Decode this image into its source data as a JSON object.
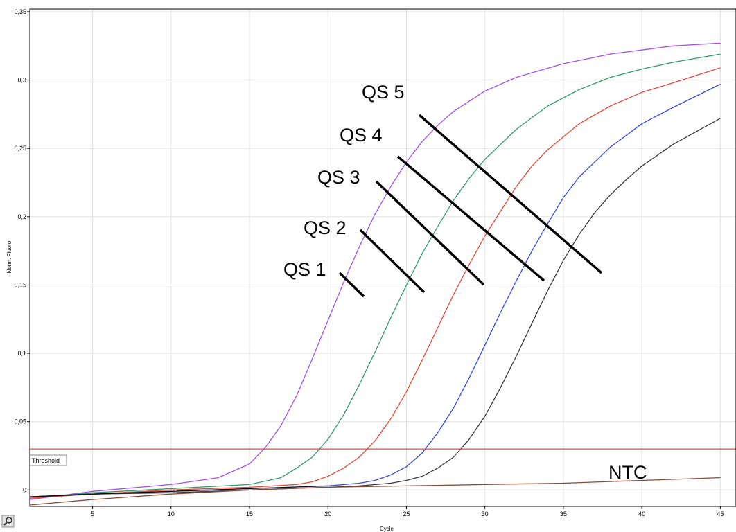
{
  "chart_data": {
    "type": "line",
    "xlabel": "Cycle",
    "ylabel": "Norm. Fluoro.",
    "xlim": [
      1,
      46
    ],
    "ylim": [
      -0.012,
      0.352
    ],
    "xticks": [
      5,
      10,
      15,
      20,
      25,
      30,
      35,
      40,
      45
    ],
    "xtick_labels": [
      "5",
      "10",
      "15",
      "20",
      "25",
      "30",
      "35",
      "40",
      "45"
    ],
    "yticks": [
      0,
      0.05,
      0.1,
      0.15,
      0.2,
      0.25,
      0.3,
      0.35
    ],
    "ytick_labels": [
      "0",
      "0,05",
      "0,1",
      "0,15",
      "0,2",
      "0,25",
      "0,3",
      "0,35"
    ],
    "threshold": {
      "label": "Threshold",
      "value": 0.03,
      "color": "#e04848"
    },
    "series": [
      {
        "label": "QS 5",
        "color": "#a050ee",
        "x": [
          1,
          5,
          10,
          13,
          15,
          16,
          17,
          18,
          19,
          20,
          21,
          22,
          23,
          24,
          25,
          26,
          27,
          28,
          30,
          32,
          35,
          38,
          40,
          42,
          45
        ],
        "y": [
          -0.007,
          -0.001,
          0.004,
          0.009,
          0.019,
          0.031,
          0.047,
          0.069,
          0.096,
          0.124,
          0.152,
          0.178,
          0.202,
          0.222,
          0.24,
          0.255,
          0.267,
          0.277,
          0.292,
          0.302,
          0.312,
          0.319,
          0.322,
          0.325,
          0.327
        ]
      },
      {
        "label": "QS 4",
        "color": "#2e9a66",
        "x": [
          1,
          5,
          10,
          15,
          17,
          18,
          19,
          20,
          21,
          22,
          23,
          24,
          25,
          26,
          27,
          28,
          29,
          30,
          32,
          34,
          36,
          38,
          40,
          42,
          45
        ],
        "y": [
          -0.006,
          -0.002,
          0.001,
          0.004,
          0.009,
          0.016,
          0.024,
          0.037,
          0.055,
          0.077,
          0.101,
          0.126,
          0.15,
          0.173,
          0.193,
          0.212,
          0.228,
          0.242,
          0.264,
          0.281,
          0.293,
          0.302,
          0.308,
          0.313,
          0.319
        ]
      },
      {
        "label": "QS 3",
        "color": "#e2483a",
        "x": [
          1,
          5,
          10,
          15,
          18,
          19,
          20,
          21,
          22,
          23,
          24,
          25,
          26,
          27,
          28,
          29,
          30,
          31,
          32,
          33,
          34,
          36,
          38,
          40,
          42,
          45
        ],
        "y": [
          -0.006,
          -0.003,
          0.0,
          0.002,
          0.004,
          0.006,
          0.01,
          0.016,
          0.024,
          0.036,
          0.052,
          0.072,
          0.095,
          0.119,
          0.143,
          0.165,
          0.186,
          0.204,
          0.222,
          0.237,
          0.249,
          0.268,
          0.281,
          0.291,
          0.298,
          0.309
        ]
      },
      {
        "label": "QS 2",
        "color": "#3648e0",
        "x": [
          1,
          5,
          10,
          15,
          20,
          22,
          23,
          24,
          25,
          26,
          27,
          28,
          29,
          30,
          31,
          32,
          33,
          34,
          35,
          36,
          38,
          40,
          42,
          45
        ],
        "y": [
          -0.005,
          -0.003,
          -0.001,
          0.001,
          0.003,
          0.005,
          0.007,
          0.011,
          0.017,
          0.027,
          0.042,
          0.06,
          0.082,
          0.106,
          0.13,
          0.153,
          0.175,
          0.195,
          0.214,
          0.229,
          0.251,
          0.268,
          0.28,
          0.297
        ]
      },
      {
        "label": "QS 1",
        "color": "#383838",
        "x": [
          1,
          5,
          10,
          15,
          20,
          22,
          24,
          25,
          26,
          27,
          28,
          29,
          30,
          31,
          32,
          33,
          34,
          35,
          36,
          37,
          38,
          39,
          40,
          42,
          45
        ],
        "y": [
          -0.005,
          -0.003,
          -0.002,
          0.0,
          0.002,
          0.003,
          0.005,
          0.007,
          0.01,
          0.016,
          0.024,
          0.037,
          0.054,
          0.075,
          0.098,
          0.122,
          0.146,
          0.168,
          0.187,
          0.203,
          0.216,
          0.227,
          0.237,
          0.253,
          0.272
        ]
      },
      {
        "label": "NTC",
        "color": "#8a4a3a",
        "x": [
          1,
          5,
          10,
          15,
          20,
          25,
          30,
          35,
          40,
          45
        ],
        "y": [
          -0.011,
          -0.007,
          -0.003,
          0.0,
          0.002,
          0.003,
          0.004,
          0.005,
          0.007,
          0.009
        ]
      },
      {
        "label": "",
        "color": "#101010",
        "x": [
          1,
          5,
          10,
          15,
          20
        ],
        "y": [
          -0.005,
          -0.003,
          -0.001,
          0.001,
          0.003
        ]
      }
    ],
    "annotations": [
      {
        "text": "QS 5",
        "target_series": "QS 5"
      },
      {
        "text": "QS 4",
        "target_series": "QS 4"
      },
      {
        "text": "QS 3",
        "target_series": "QS 3"
      },
      {
        "text": "QS 2",
        "target_series": "QS 2"
      },
      {
        "text": "QS 1",
        "target_series": "QS 1"
      },
      {
        "text": "NTC",
        "target_series": "NTC"
      }
    ]
  },
  "toolbar": {
    "icon": "zoom-pan-icon"
  }
}
